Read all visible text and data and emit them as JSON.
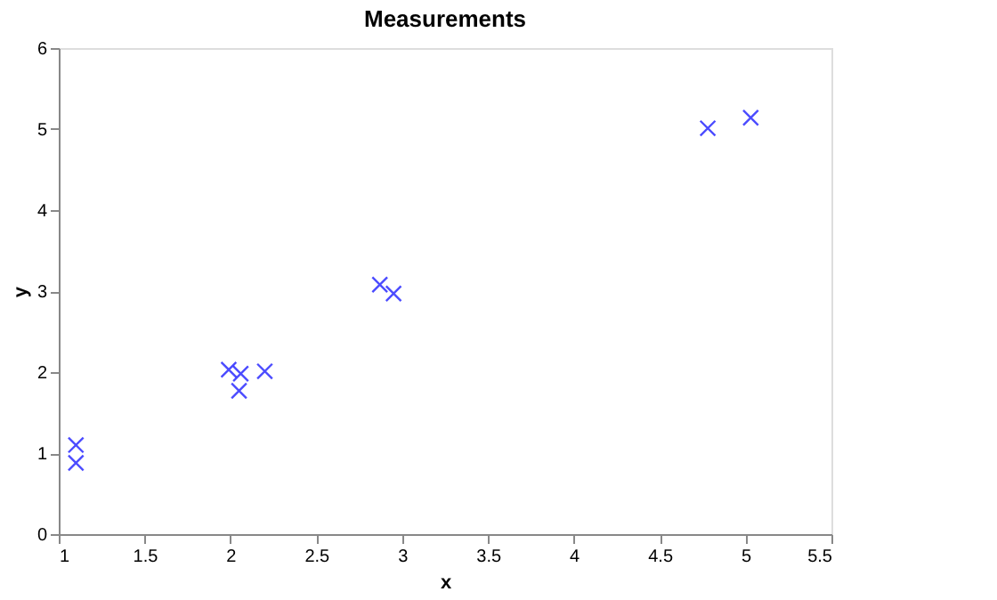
{
  "chart_data": {
    "type": "scatter",
    "title": "Measurements",
    "xlabel": "x",
    "ylabel": "y",
    "x": [
      1.1,
      1.1,
      1.99,
      2.06,
      2.05,
      2.2,
      2.87,
      2.95,
      4.78,
      5.03
    ],
    "series": [
      {
        "color": "#0000ff",
        "values": [
          1.1,
          0.88,
          2.03,
          1.98,
          1.77,
          2.01,
          3.08,
          2.97,
          5.01,
          5.14
        ]
      }
    ],
    "marker": "cross",
    "xlim": [
      1,
      5.5
    ],
    "ylim": [
      0,
      6
    ],
    "xticks": [
      1,
      1.5,
      2,
      2.5,
      3,
      3.5,
      4,
      4.5,
      5,
      5.5
    ],
    "yticks": [
      0,
      1,
      2,
      3,
      4,
      5,
      6
    ],
    "grid": false,
    "legend": false
  }
}
